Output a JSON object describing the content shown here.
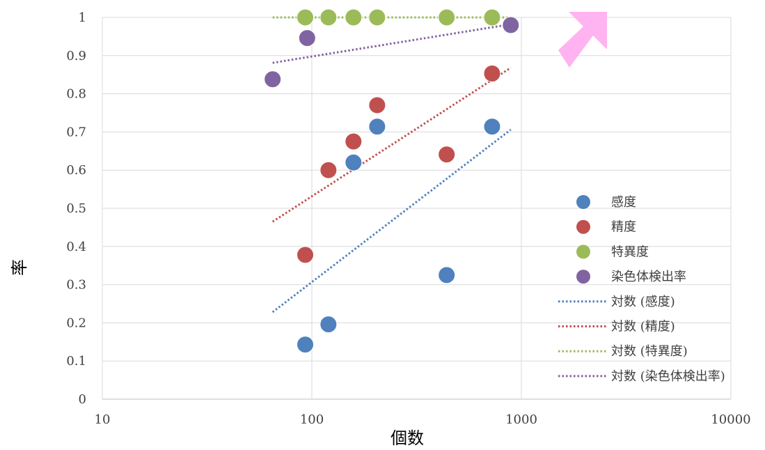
{
  "chart_data": {
    "type": "scatter",
    "xscale": "log",
    "xlim": [
      10,
      10000
    ],
    "ylim": [
      0,
      1
    ],
    "xticks": [
      "10",
      "100",
      "1000",
      "10000"
    ],
    "yticks": [
      "0",
      "0.1",
      "0.2",
      "0.3",
      "0.4",
      "0.5",
      "0.6",
      "0.7",
      "0.8",
      "0.9",
      "1"
    ],
    "xlabel": "個数",
    "ylabel": "率",
    "grid": true,
    "legend_position": "right",
    "series": [
      {
        "name": "感度",
        "color": "#4f81bd",
        "points": [
          [
            93,
            0.143
          ],
          [
            120,
            0.196
          ],
          [
            158,
            0.62
          ],
          [
            205,
            0.714
          ],
          [
            440,
            0.325
          ],
          [
            725,
            0.714
          ]
        ]
      },
      {
        "name": "精度",
        "color": "#c0504d",
        "points": [
          [
            93,
            0.378
          ],
          [
            120,
            0.6
          ],
          [
            158,
            0.675
          ],
          [
            205,
            0.77
          ],
          [
            440,
            0.641
          ],
          [
            725,
            0.853
          ]
        ]
      },
      {
        "name": "特異度",
        "color": "#9bbb59",
        "points": [
          [
            93,
            1.0
          ],
          [
            120,
            1.0
          ],
          [
            158,
            1.0
          ],
          [
            205,
            1.0
          ],
          [
            440,
            1.0
          ],
          [
            725,
            1.0
          ]
        ]
      },
      {
        "name": "染色体検出率",
        "color": "#8064a2",
        "points": [
          [
            65,
            0.838
          ],
          [
            95,
            0.946
          ],
          [
            890,
            0.98
          ]
        ]
      }
    ],
    "trendlines": [
      {
        "name": "対数 (感度)",
        "color": "#4f81bd",
        "x": [
          65,
          890
        ],
        "y": [
          0.228,
          0.706
        ]
      },
      {
        "name": "対数 (精度)",
        "color": "#c0504d",
        "x": [
          65,
          890
        ],
        "y": [
          0.465,
          0.868
        ]
      },
      {
        "name": "対数 (特異度)",
        "color": "#9bbb59",
        "x": [
          65,
          890
        ],
        "y": [
          1.0,
          1.0
        ]
      },
      {
        "name": "対数 (染色体検出率)",
        "color": "#8064a2",
        "x": [
          65,
          890
        ],
        "y": [
          0.881,
          0.982
        ]
      }
    ],
    "annotation_arrow": {
      "color": "#ffb3f0",
      "direction": "up-right"
    }
  }
}
